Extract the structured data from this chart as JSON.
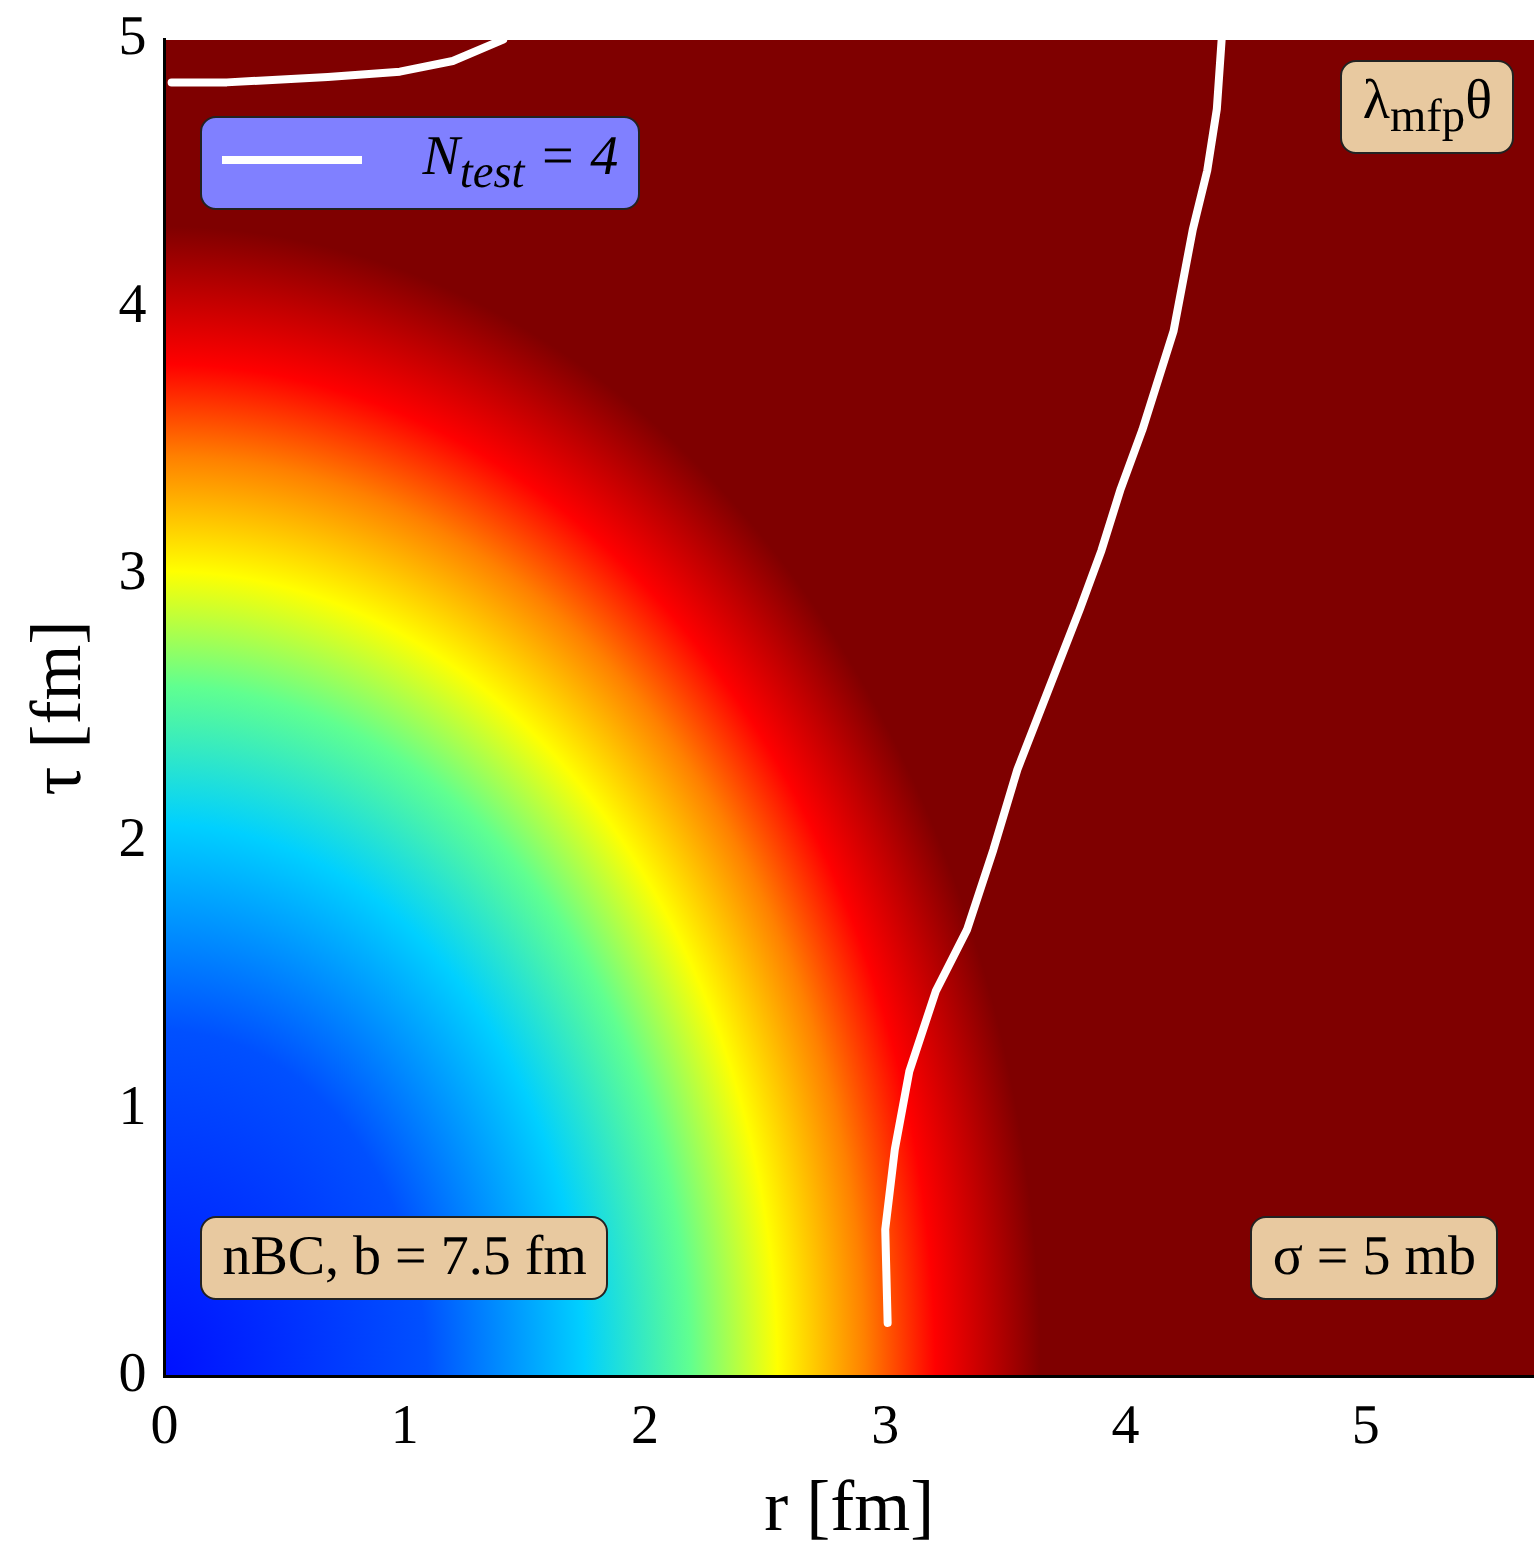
{
  "chart_data": {
    "type": "line",
    "xlabel": "r [fm]",
    "ylabel": "τ [fm]",
    "annotations": [
      "λ$_{mfp}$θ",
      "nBC, b = 7.5 fm",
      "σ = 5 mb"
    ],
    "series": [
      {
        "name": "N$_{test}$ = 4",
        "color": "#ffffff",
        "x": [
          4.4,
          4.38,
          4.34,
          4.28,
          4.2,
          4.07,
          3.98,
          3.9,
          3.81,
          3.68,
          3.55,
          3.45,
          3.34,
          3.21,
          3.1,
          3.04,
          3.0,
          3.01
        ],
        "values": [
          5.0,
          4.74,
          4.51,
          4.29,
          3.91,
          3.54,
          3.32,
          3.09,
          2.87,
          2.57,
          2.27,
          1.97,
          1.67,
          1.44,
          1.14,
          0.85,
          0.55,
          0.2
        ]
      },
      {
        "color": "#ffffff",
        "x": [
          0.03,
          0.26,
          0.68,
          0.98,
          1.2,
          1.41
        ],
        "values": [
          4.84,
          4.84,
          4.86,
          4.88,
          4.92,
          5.0
        ]
      }
    ],
    "xlim": [
      0,
      5.7
    ],
    "ylim": [
      0,
      5
    ],
    "xticks": [
      0,
      1,
      2,
      3,
      4,
      5
    ],
    "yticks": [
      0,
      1,
      2,
      3,
      4,
      5
    ],
    "grid": false,
    "legend": "top left",
    "marker": "none",
    "line_style": "solid"
  }
}
